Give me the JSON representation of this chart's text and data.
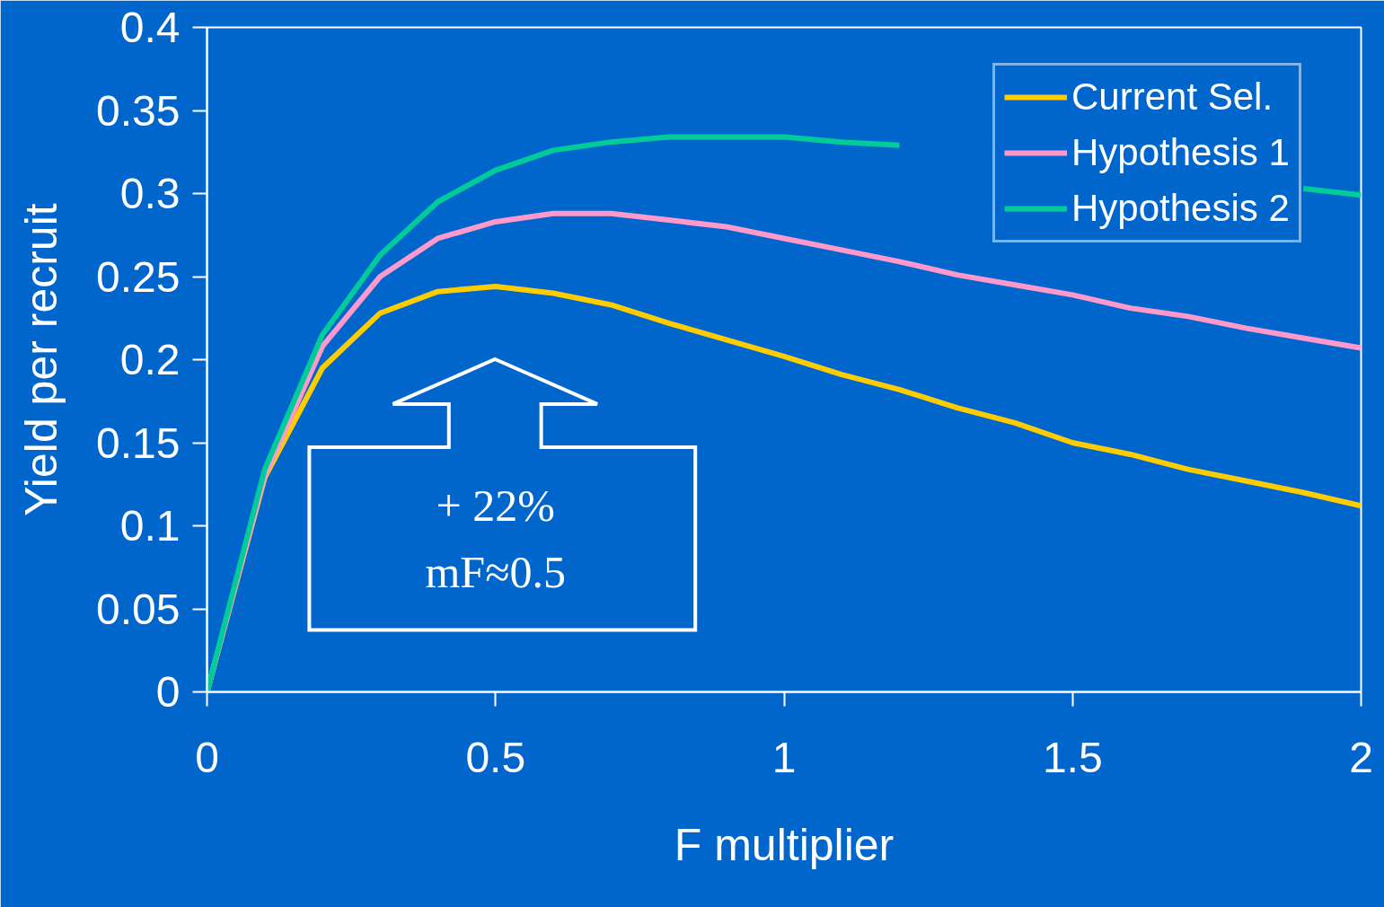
{
  "chart_data": {
    "type": "line",
    "xlabel": "F multiplier",
    "ylabel": "Yield per recruit",
    "x": [
      0,
      0.1,
      0.2,
      0.3,
      0.4,
      0.5,
      0.6,
      0.7,
      0.8,
      0.9,
      1.0,
      1.1,
      1.2,
      1.3,
      1.4,
      1.5,
      1.6,
      1.7,
      1.8,
      1.9,
      2.0
    ],
    "series": [
      {
        "name": "Current Sel.",
        "color": "#ffcc00",
        "values": [
          0,
          0.129,
          0.195,
          0.228,
          0.241,
          0.244,
          0.24,
          0.233,
          0.222,
          0.212,
          0.202,
          0.191,
          0.182,
          0.171,
          0.162,
          0.15,
          0.143,
          0.134,
          0.127,
          0.12,
          0.112
        ]
      },
      {
        "name": "Hypothesis 1",
        "color": "#ff99cc",
        "values": [
          0,
          0.13,
          0.208,
          0.25,
          0.273,
          0.283,
          0.288,
          0.288,
          0.284,
          0.28,
          0.273,
          0.266,
          0.259,
          0.251,
          0.245,
          0.239,
          0.231,
          0.226,
          0.219,
          0.213,
          0.207
        ]
      },
      {
        "name": "Hypothesis 2",
        "color": "#00cc99",
        "values": [
          0,
          0.134,
          0.215,
          0.263,
          0.295,
          0.314,
          0.326,
          0.331,
          0.334,
          0.334,
          0.334,
          0.331,
          0.329,
          null,
          null,
          null,
          null,
          null,
          null,
          0.303,
          0.299
        ]
      }
    ],
    "xlim": [
      0,
      2
    ],
    "xticks": [
      0,
      0.5,
      1,
      1.5,
      2
    ],
    "ylim": [
      0,
      0.4
    ],
    "yticks": [
      0,
      0.05,
      0.1,
      0.15,
      0.2,
      0.25,
      0.3,
      0.35,
      0.4
    ],
    "grid": false,
    "legend": "top right",
    "marker": "none",
    "line_style": "solid",
    "annotations": [
      "+ 22%\nmF≈0.5"
    ]
  }
}
